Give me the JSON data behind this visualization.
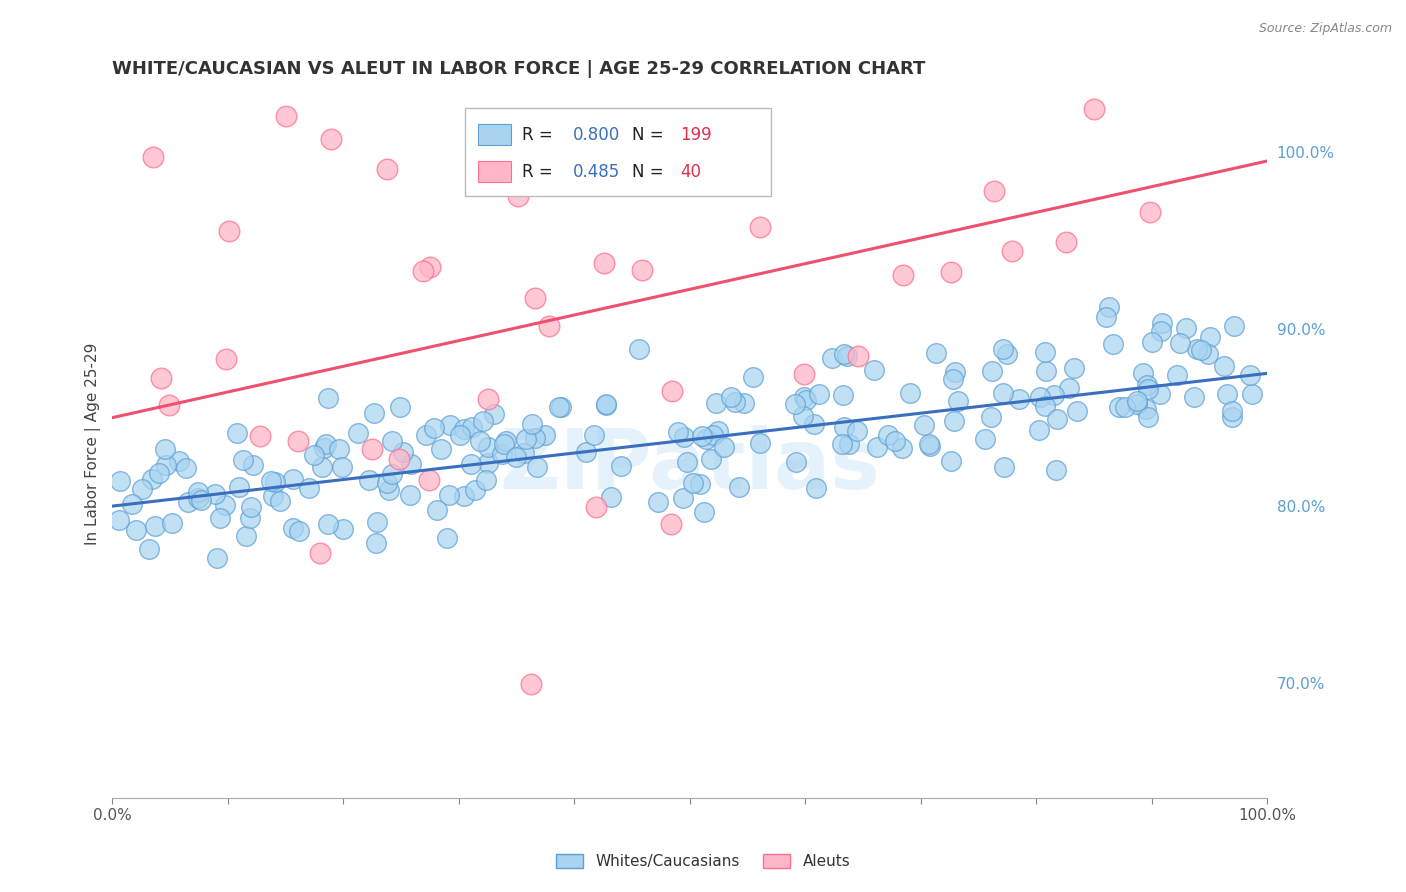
{
  "title": "WHITE/CAUCASIAN VS ALEUT IN LABOR FORCE | AGE 25-29 CORRELATION CHART",
  "source": "Source: ZipAtlas.com",
  "ylabel": "In Labor Force | Age 25-29",
  "xlim": [
    0.0,
    1.0
  ],
  "ylim": [
    0.635,
    1.035
  ],
  "blue_R": 0.8,
  "blue_N": 199,
  "pink_R": 0.485,
  "pink_N": 40,
  "blue_color": "#A8D4F0",
  "blue_edge": "#5B9FD4",
  "pink_color": "#FFB6C8",
  "pink_edge": "#FF7090",
  "blue_line_color": "#3A6FBF",
  "pink_line_color": "#F05070",
  "right_tick_color": "#5B9FD4",
  "watermark": "ZIPatlas",
  "legend_labels": [
    "Whites/Caucasians",
    "Aleuts"
  ],
  "right_yticks": [
    0.7,
    0.8,
    0.9,
    1.0
  ],
  "right_yticklabels": [
    "70.0%",
    "80.0%",
    "90.0%",
    "100.0%"
  ],
  "grid_color": "#CCCCCC",
  "title_fontsize": 13,
  "axis_label_fontsize": 11,
  "tick_fontsize": 11,
  "blue_slope": 0.075,
  "blue_intercept": 0.8,
  "blue_sigma": 0.02,
  "pink_slope": 0.145,
  "pink_intercept": 0.85,
  "pink_sigma": 0.075,
  "blue_seed": 42,
  "pink_seed": 15,
  "legend_R_color": "#3A6FBF",
  "legend_N_color": "#E03050"
}
